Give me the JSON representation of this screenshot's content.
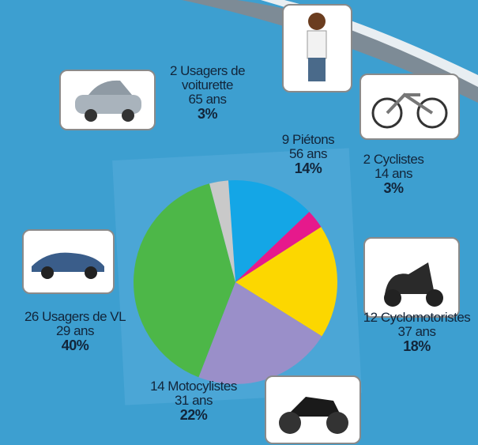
{
  "chart_data": {
    "type": "pie",
    "categories": [
      "9 Piétons",
      "2 Cyclistes",
      "12 Cyclomotoristes",
      "14 Motocylistes",
      "26 Usagers de VL",
      "2 Usagers de voiturette"
    ],
    "ages": [
      "56 ans",
      "14 ans",
      "37 ans",
      "31 ans",
      "29 ans",
      "65 ans"
    ],
    "values": [
      14,
      3,
      18,
      22,
      40,
      3
    ],
    "value_labels": [
      "14%",
      "3%",
      "18%",
      "22%",
      "40%",
      "3%"
    ],
    "colors": [
      "#14a6e6",
      "#e6198c",
      "#fcd700",
      "#9a8fc9",
      "#4db748",
      "#c9c9c9"
    ]
  }
}
